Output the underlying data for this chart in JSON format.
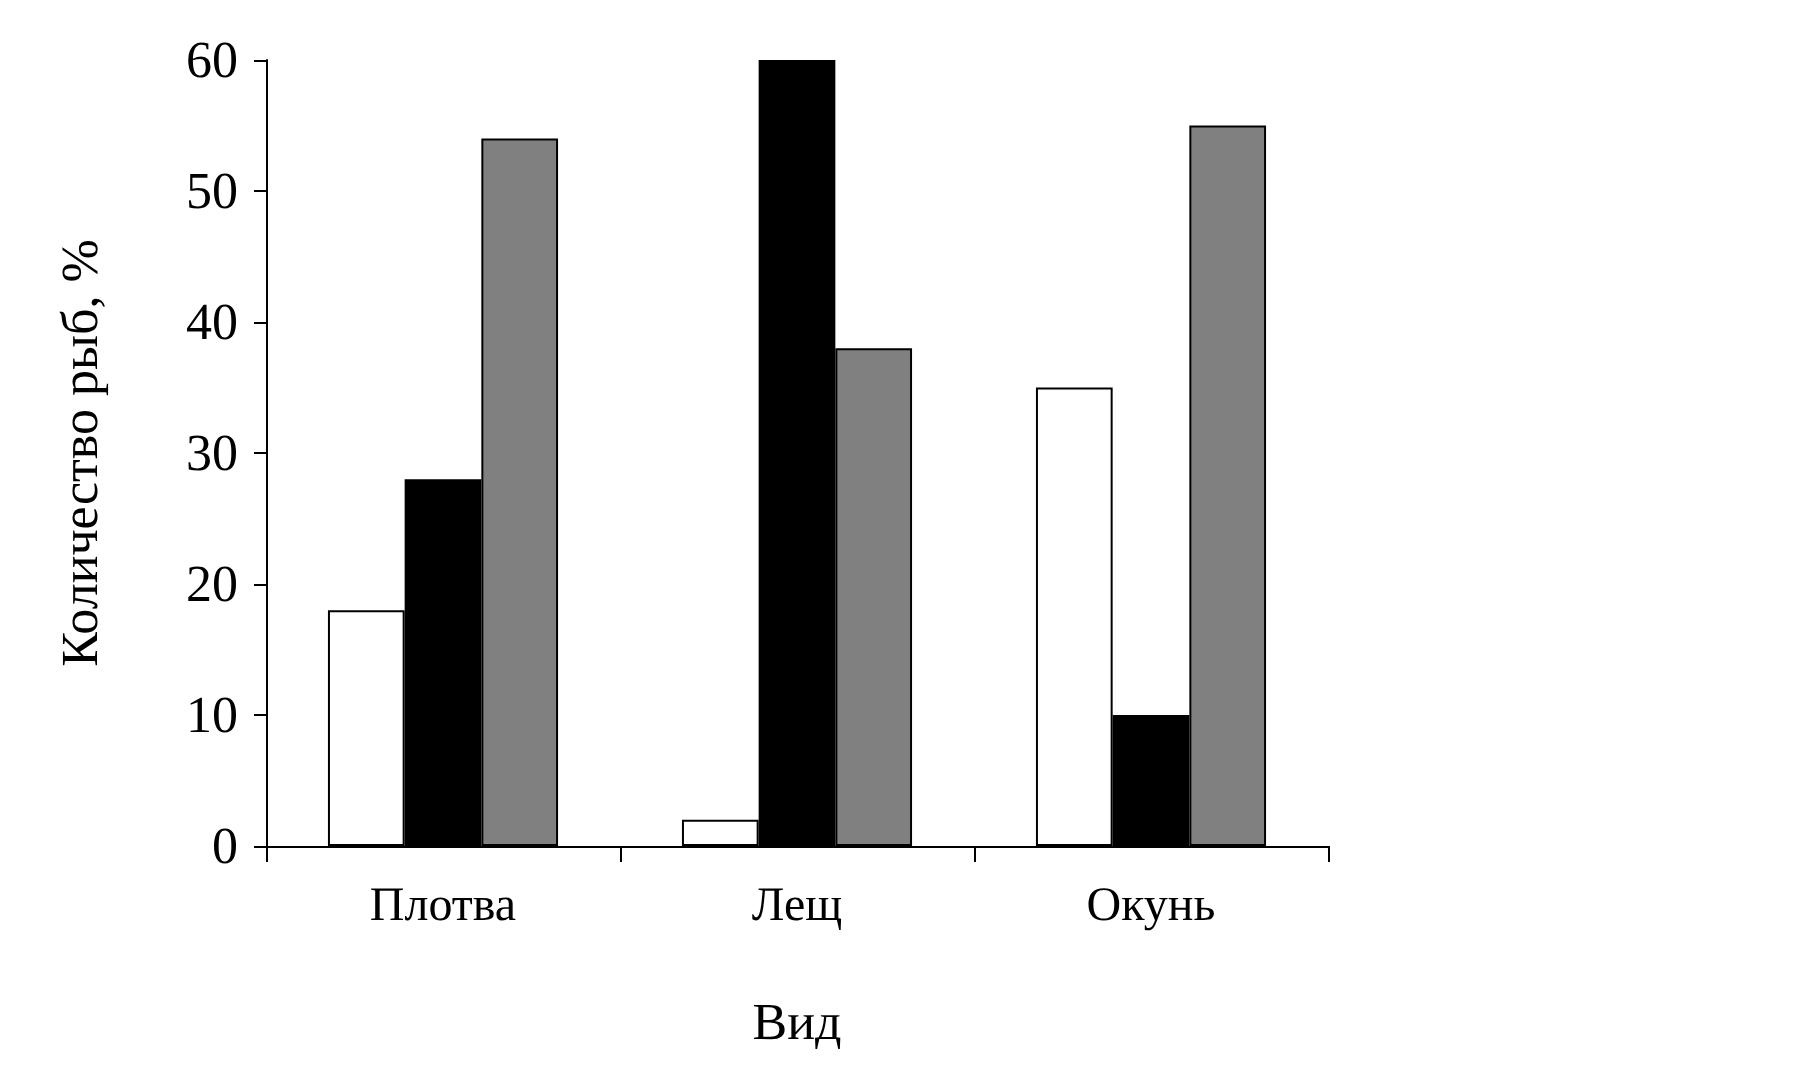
{
  "chart_data": {
    "type": "bar",
    "xlabel": "Вид",
    "ylabel": "Количество рыб, %",
    "categories": [
      "Плотва",
      "Лещ",
      "Окунь"
    ],
    "series": [
      {
        "color": "#ffffff",
        "values": [
          18,
          2,
          35
        ]
      },
      {
        "color": "#000000",
        "values": [
          28,
          60,
          10
        ]
      },
      {
        "color": "#808080",
        "values": [
          54,
          38,
          55
        ]
      }
    ],
    "ylim": [
      0,
      60
    ],
    "yticks": [
      0,
      10,
      20,
      30,
      40,
      50,
      60
    ],
    "grid": false
  }
}
